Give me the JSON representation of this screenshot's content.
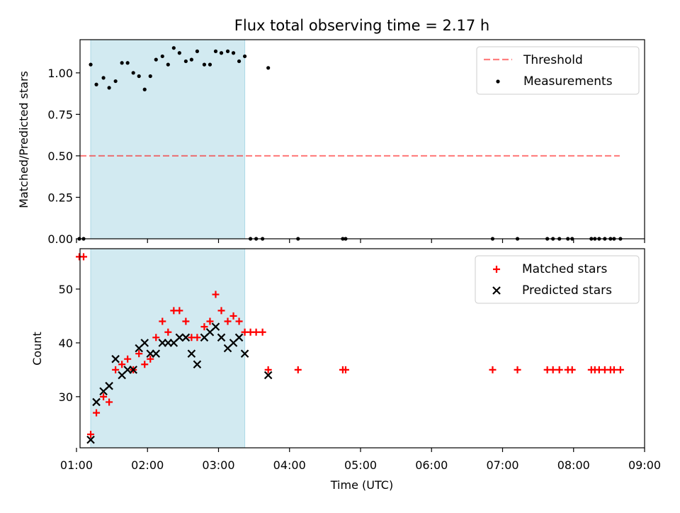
{
  "title": "Flux total observing time = 2.17 h",
  "colors": {
    "span": "#add8e6",
    "threshold": "#ff0000",
    "measurements": "#000000",
    "matched": "#ff0000",
    "predicted": "#000000"
  },
  "chart_data": [
    {
      "type": "scatter",
      "panel": "top",
      "ylabel": "Matched/Predicted stars",
      "xlabel": "",
      "xlim": [
        1.05,
        9.0
      ],
      "ylim": [
        0,
        1.2
      ],
      "yticks": [
        0,
        0.25,
        0.5,
        0.75,
        1.0
      ],
      "ytick_labels": [
        "0.00",
        "0.25",
        "0.50",
        "0.75",
        "1.00"
      ],
      "shaded_span": [
        1.2,
        3.37
      ],
      "legend_position": "upper right",
      "threshold": {
        "name": "Threshold",
        "value": 0.5,
        "x_range": [
          1.05,
          8.65
        ]
      },
      "series": [
        {
          "name": "Measurements",
          "points": [
            [
              1.04,
              0
            ],
            [
              1.1,
              0
            ],
            [
              1.2,
              1.05
            ],
            [
              1.28,
              0.93
            ],
            [
              1.38,
              0.97
            ],
            [
              1.46,
              0.91
            ],
            [
              1.55,
              0.95
            ],
            [
              1.64,
              1.06
            ],
            [
              1.72,
              1.06
            ],
            [
              1.8,
              1.0
            ],
            [
              1.88,
              0.98
            ],
            [
              1.96,
              0.9
            ],
            [
              2.04,
              0.98
            ],
            [
              2.12,
              1.08
            ],
            [
              2.21,
              1.1
            ],
            [
              2.29,
              1.05
            ],
            [
              2.37,
              1.15
            ],
            [
              2.45,
              1.12
            ],
            [
              2.54,
              1.07
            ],
            [
              2.62,
              1.08
            ],
            [
              2.7,
              1.13
            ],
            [
              2.8,
              1.05
            ],
            [
              2.88,
              1.05
            ],
            [
              2.96,
              1.13
            ],
            [
              3.04,
              1.12
            ],
            [
              3.13,
              1.13
            ],
            [
              3.21,
              1.12
            ],
            [
              3.29,
              1.07
            ],
            [
              3.37,
              1.1
            ],
            [
              3.45,
              0
            ],
            [
              3.53,
              0
            ],
            [
              3.62,
              0
            ],
            [
              3.7,
              1.03
            ],
            [
              4.12,
              0
            ],
            [
              4.75,
              0
            ],
            [
              4.79,
              0
            ],
            [
              6.86,
              0
            ],
            [
              7.21,
              0
            ],
            [
              7.63,
              0
            ],
            [
              7.71,
              0
            ],
            [
              7.8,
              0
            ],
            [
              7.92,
              0
            ],
            [
              7.98,
              0
            ],
            [
              8.25,
              0
            ],
            [
              8.3,
              0
            ],
            [
              8.36,
              0
            ],
            [
              8.44,
              0
            ],
            [
              8.52,
              0
            ],
            [
              8.57,
              0
            ],
            [
              8.66,
              0
            ]
          ]
        }
      ]
    },
    {
      "type": "scatter",
      "panel": "bottom",
      "xlabel": "Time (UTC)",
      "ylabel": "Count",
      "xlim": [
        1.05,
        9.0
      ],
      "ylim": [
        20.5,
        57.5
      ],
      "yticks": [
        30,
        40,
        50
      ],
      "ytick_labels": [
        "30",
        "40",
        "50"
      ],
      "xticks": [
        1,
        2,
        3,
        4,
        5,
        6,
        7,
        8,
        9
      ],
      "xtick_labels": [
        "01:00",
        "02:00",
        "03:00",
        "04:00",
        "05:00",
        "06:00",
        "07:00",
        "08:00",
        "09:00"
      ],
      "shaded_span": [
        1.2,
        3.37
      ],
      "legend_position": "upper right",
      "series": [
        {
          "name": "Matched stars",
          "marker": "plus",
          "points": [
            [
              1.04,
              56
            ],
            [
              1.1,
              56
            ],
            [
              1.2,
              23
            ],
            [
              1.28,
              27
            ],
            [
              1.38,
              30
            ],
            [
              1.46,
              29
            ],
            [
              1.55,
              35
            ],
            [
              1.64,
              36
            ],
            [
              1.72,
              37
            ],
            [
              1.8,
              35
            ],
            [
              1.88,
              38
            ],
            [
              1.96,
              36
            ],
            [
              2.04,
              37
            ],
            [
              2.12,
              41
            ],
            [
              2.21,
              44
            ],
            [
              2.29,
              42
            ],
            [
              2.37,
              46
            ],
            [
              2.45,
              46
            ],
            [
              2.54,
              44
            ],
            [
              2.62,
              41
            ],
            [
              2.7,
              41
            ],
            [
              2.8,
              43
            ],
            [
              2.88,
              44
            ],
            [
              2.96,
              49
            ],
            [
              3.04,
              46
            ],
            [
              3.13,
              44
            ],
            [
              3.21,
              45
            ],
            [
              3.29,
              44
            ],
            [
              3.37,
              42
            ],
            [
              3.45,
              42
            ],
            [
              3.53,
              42
            ],
            [
              3.62,
              42
            ],
            [
              3.7,
              35
            ],
            [
              4.12,
              35
            ],
            [
              4.75,
              35
            ],
            [
              4.79,
              35
            ],
            [
              6.86,
              35
            ],
            [
              7.21,
              35
            ],
            [
              7.63,
              35
            ],
            [
              7.71,
              35
            ],
            [
              7.8,
              35
            ],
            [
              7.92,
              35
            ],
            [
              7.98,
              35
            ],
            [
              8.25,
              35
            ],
            [
              8.3,
              35
            ],
            [
              8.36,
              35
            ],
            [
              8.44,
              35
            ],
            [
              8.52,
              35
            ],
            [
              8.57,
              35
            ],
            [
              8.66,
              35
            ]
          ]
        },
        {
          "name": "Predicted stars",
          "marker": "x",
          "points": [
            [
              1.2,
              22
            ],
            [
              1.28,
              29
            ],
            [
              1.38,
              31
            ],
            [
              1.46,
              32
            ],
            [
              1.55,
              37
            ],
            [
              1.64,
              34
            ],
            [
              1.72,
              35
            ],
            [
              1.8,
              35
            ],
            [
              1.88,
              39
            ],
            [
              1.96,
              40
            ],
            [
              2.04,
              38
            ],
            [
              2.12,
              38
            ],
            [
              2.21,
              40
            ],
            [
              2.29,
              40
            ],
            [
              2.37,
              40
            ],
            [
              2.45,
              41
            ],
            [
              2.54,
              41
            ],
            [
              2.62,
              38
            ],
            [
              2.7,
              36
            ],
            [
              2.8,
              41
            ],
            [
              2.88,
              42
            ],
            [
              2.96,
              43
            ],
            [
              3.04,
              41
            ],
            [
              3.13,
              39
            ],
            [
              3.21,
              40
            ],
            [
              3.29,
              41
            ],
            [
              3.37,
              38
            ],
            [
              3.7,
              34
            ]
          ]
        }
      ]
    }
  ]
}
